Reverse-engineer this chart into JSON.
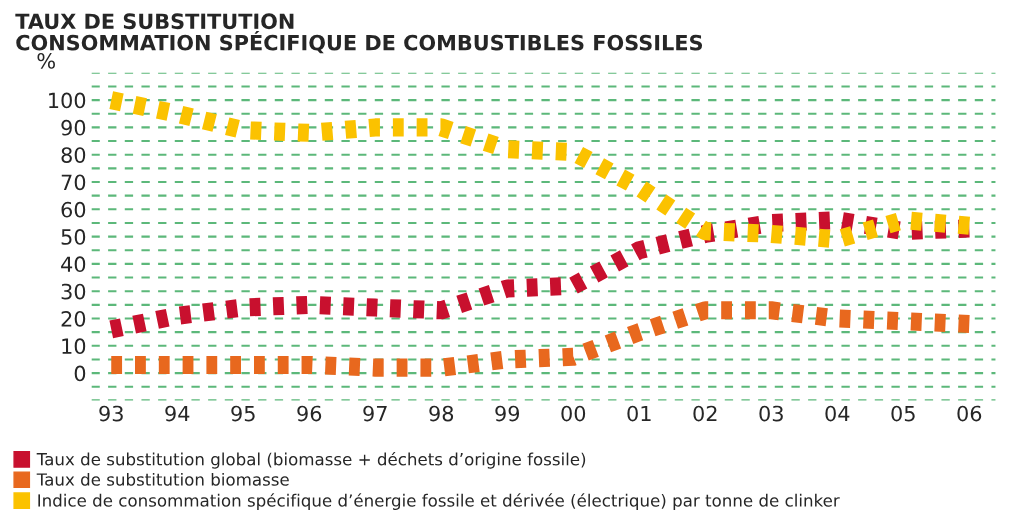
{
  "chart_data": {
    "type": "line",
    "title": "TAUX DE SUBSTITUTION\nCONSOMMATION SPÉCIFIQUE DE COMBUSTIBLES FOSSILES",
    "ylabel": "%",
    "categories": [
      "93",
      "94",
      "95",
      "96",
      "97",
      "98",
      "99",
      "00",
      "01",
      "02",
      "03",
      "04",
      "05",
      "06"
    ],
    "series": [
      {
        "name": "Taux de substitution global (biomasse + déchets d’origine fossile)",
        "color": "#c8102e",
        "values": [
          16,
          21,
          24,
          25,
          24,
          23,
          31,
          32,
          45,
          51,
          55,
          56,
          52,
          53
        ]
      },
      {
        "name": "Taux de substitution biomasse",
        "color": "#e8681e",
        "values": [
          3,
          3,
          3,
          3,
          2,
          2,
          5,
          6,
          15,
          23,
          23,
          20,
          19,
          18
        ]
      },
      {
        "name": "Indice de consommation spécifique d’énergie fossile et dérivée (électrique) par tonne de clinker",
        "color": "#fbc200",
        "values": [
          100,
          95,
          89,
          88,
          90,
          90,
          82,
          81,
          68,
          52,
          51,
          49,
          56,
          54
        ]
      }
    ],
    "ylim": [
      -10,
      110
    ],
    "yticks": [
      {
        "value": -10,
        "label": null
      },
      {
        "value": -5,
        "label": null
      },
      0,
      {
        "value": 5,
        "label": null
      },
      10,
      {
        "value": 15,
        "label": null
      },
      20,
      {
        "value": 25,
        "label": null
      },
      30,
      {
        "value": 35,
        "label": null
      },
      40,
      {
        "value": 45,
        "label": null
      },
      50,
      {
        "value": 55,
        "label": null
      },
      60,
      {
        "value": 65,
        "label": null
      },
      70,
      {
        "value": 75,
        "label": null
      },
      80,
      {
        "value": 85,
        "label": null
      },
      90,
      {
        "value": 95,
        "label": null
      },
      100,
      {
        "value": 105,
        "label": null
      },
      {
        "value": 110,
        "label": null
      }
    ],
    "grid": "y",
    "legend": "bottom left",
    "line_style": "dashed",
    "marker": "none"
  }
}
